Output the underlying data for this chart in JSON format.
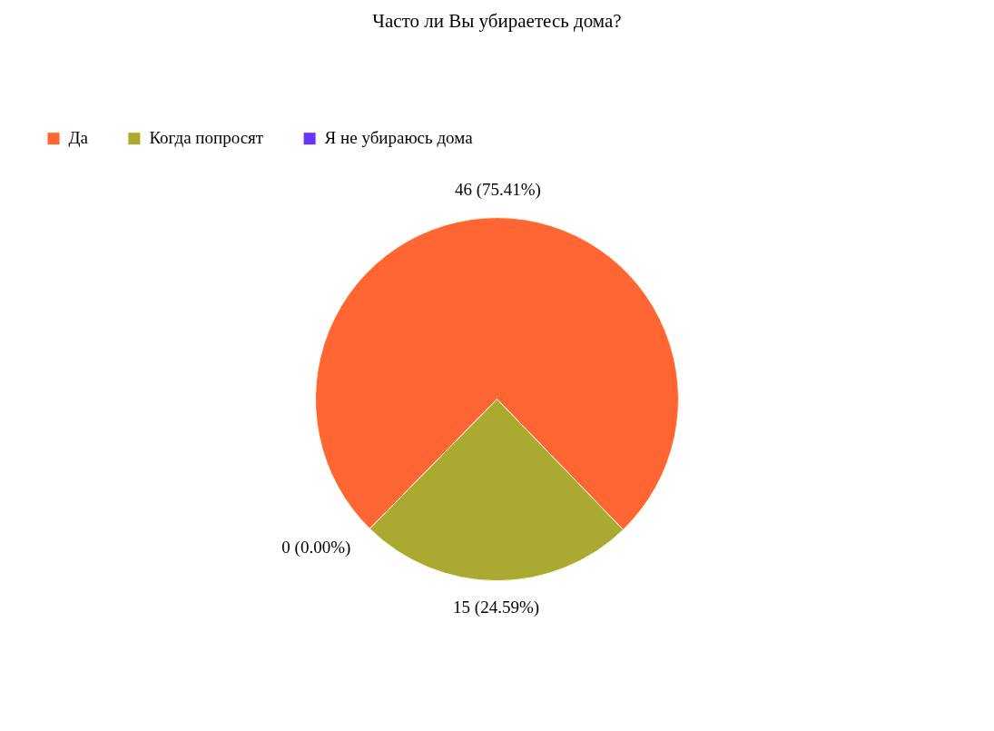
{
  "chart_data": {
    "type": "pie",
    "title": "Часто ли Вы убираетесь дома?",
    "categories": [
      "Да",
      "Когда попросят",
      "Я не убираюсь дома"
    ],
    "values": [
      46,
      15,
      0
    ],
    "colors": [
      "#ff6633",
      "#aaaa33",
      "#6633ff"
    ],
    "value_labels": [
      "46 (75.41%)",
      "15 (24.59%)",
      "0 (0.00%)"
    ],
    "legend": "top left"
  }
}
